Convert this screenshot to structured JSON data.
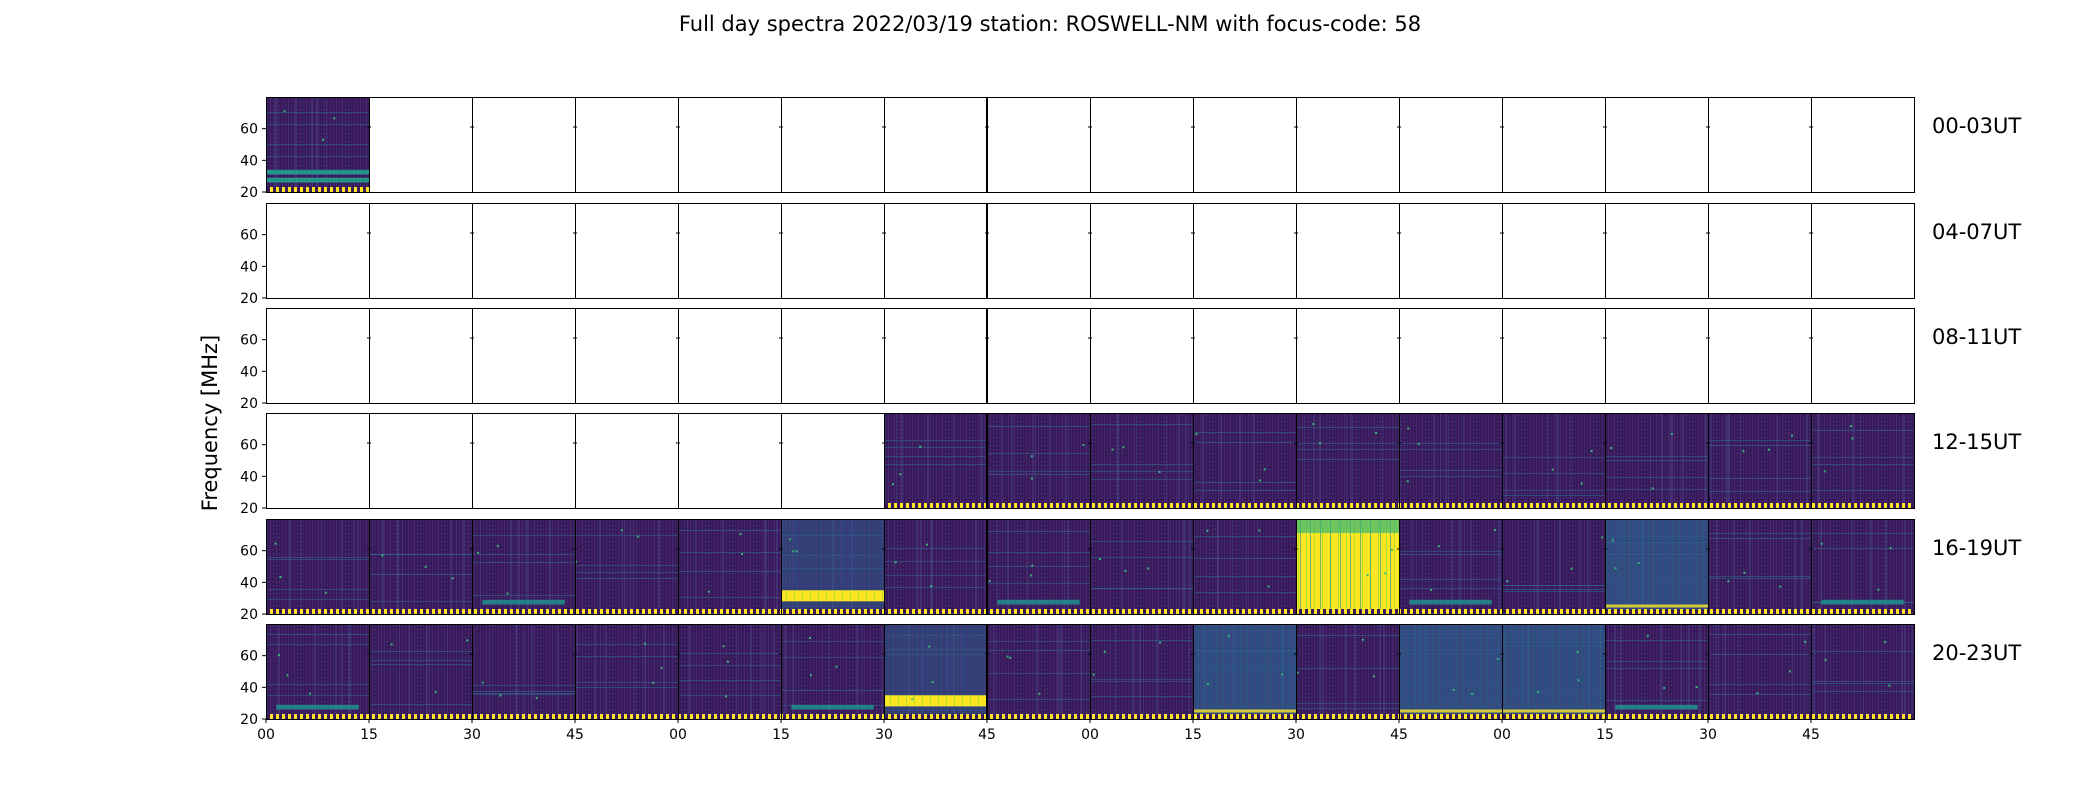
{
  "chart_data": {
    "type": "heatmap",
    "title": "Full day spectra 2022/03/19 station: ROSWELL-NM with focus-code: 58",
    "ylabel": "Frequency [MHz]",
    "xlabel": "",
    "ylim": [
      20,
      80
    ],
    "y_ticks": [
      "20",
      "40",
      "60"
    ],
    "x_ticks": [
      "00",
      "15",
      "30",
      "45",
      "00",
      "15",
      "30",
      "45",
      "00",
      "15",
      "30",
      "45",
      "00",
      "15",
      "30",
      "45"
    ],
    "colormap": "viridis",
    "colors": {
      "dark": "#3b1a5c",
      "mid": "#2e6f8e",
      "teal": "#21918c",
      "green": "#35b779",
      "yellow": "#fde725"
    },
    "rows": [
      {
        "label": "00-03UT",
        "panels": [
          "low-band",
          "empty",
          "empty",
          "empty",
          "empty",
          "empty",
          "empty",
          "empty",
          "empty",
          "empty",
          "empty",
          "empty",
          "empty",
          "empty",
          "empty",
          "empty"
        ]
      },
      {
        "label": "04-07UT",
        "panels": [
          "empty",
          "empty",
          "empty",
          "empty",
          "empty",
          "empty",
          "empty",
          "empty",
          "empty",
          "empty",
          "empty",
          "empty",
          "empty",
          "empty",
          "empty",
          "empty"
        ]
      },
      {
        "label": "08-11UT",
        "panels": [
          "empty",
          "empty",
          "empty",
          "empty",
          "empty",
          "empty",
          "empty",
          "empty",
          "empty",
          "empty",
          "empty",
          "empty",
          "empty",
          "empty",
          "empty",
          "empty"
        ]
      },
      {
        "label": "12-15UT",
        "panels": [
          "empty",
          "empty",
          "empty",
          "empty",
          "empty",
          "empty",
          "quiet",
          "quiet",
          "quiet",
          "quiet",
          "quiet",
          "quiet",
          "quiet",
          "quiet",
          "quiet",
          "quiet"
        ]
      },
      {
        "label": "16-19UT",
        "panels": [
          "quiet",
          "quiet",
          "weak-band",
          "quiet",
          "quiet",
          "strong-band",
          "quiet",
          "weak-band",
          "quiet",
          "quiet",
          "burst",
          "weak-band",
          "quiet",
          "active",
          "quiet",
          "weak-band"
        ]
      },
      {
        "label": "20-23UT",
        "panels": [
          "weak-band",
          "quiet",
          "quiet",
          "quiet",
          "quiet",
          "weak-band",
          "strong-band",
          "quiet",
          "quiet",
          "active",
          "quiet",
          "active",
          "active",
          "weak-band",
          "quiet",
          "quiet"
        ]
      }
    ]
  }
}
